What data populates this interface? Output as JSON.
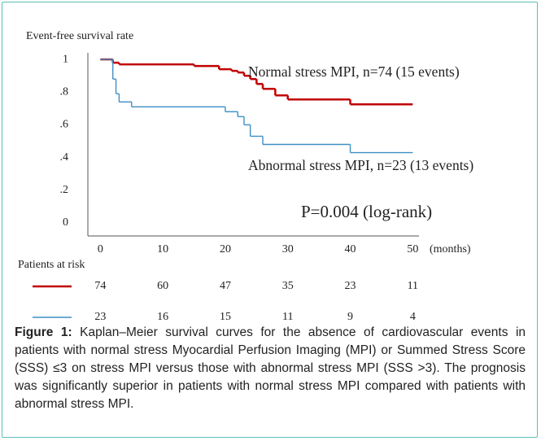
{
  "chart_data": {
    "type": "step",
    "ylabel": "Event-free survival rate",
    "xlabel": "(months)",
    "xlim": [
      -2,
      51
    ],
    "xticks": [
      0,
      10,
      20,
      30,
      40,
      50
    ],
    "ylim": [
      -0.08,
      1.04
    ],
    "yticks": [
      {
        "value": 0,
        "label": "0"
      },
      {
        "value": 0.2,
        "label": ".2"
      },
      {
        "value": 0.4,
        "label": ".4"
      },
      {
        "value": 0.6,
        "label": ".6"
      },
      {
        "value": 0.8,
        "label": ".8"
      },
      1
    ],
    "grid": false,
    "series": [
      {
        "name": "Normal stress MPI, n=74 (15 events)",
        "color": "#c00000",
        "x": [
          0,
          2,
          3,
          15,
          19,
          21,
          22,
          23,
          24,
          25,
          26,
          28,
          30,
          40,
          50
        ],
        "values": [
          1,
          0.98,
          0.97,
          0.96,
          0.94,
          0.93,
          0.92,
          0.9,
          0.88,
          0.85,
          0.82,
          0.78,
          0.755,
          0.725,
          0.725
        ]
      },
      {
        "name": "Abnormal stress MPI, n=23 (13 events)",
        "color": "#3e8fc4",
        "x": [
          0,
          2,
          2.5,
          3,
          5,
          20,
          22,
          23,
          24,
          26,
          40,
          50
        ],
        "values": [
          1,
          0.88,
          0.79,
          0.74,
          0.71,
          0.68,
          0.65,
          0.6,
          0.53,
          0.48,
          0.43,
          0.43
        ]
      }
    ],
    "annotation": "P=0.004 (log-rank)",
    "risk_table": {
      "title": "Patients at risk",
      "rows": [
        [
          74,
          60,
          47,
          35,
          23,
          11
        ],
        [
          23,
          16,
          15,
          11,
          9,
          4
        ]
      ]
    }
  },
  "caption": {
    "label": "Figure 1:",
    "text": "Kaplan–Meier survival curves for the absence of cardiovascular events in patients with normal stress Myocardial Perfusion Imaging (MPI) or Summed Stress Score (SSS) ≤3 on stress MPI versus those with abnormal stress MPI (SSS >3). The prognosis was significantly superior in patients with normal stress MPI compared with patients with abnormal stress MPI."
  }
}
